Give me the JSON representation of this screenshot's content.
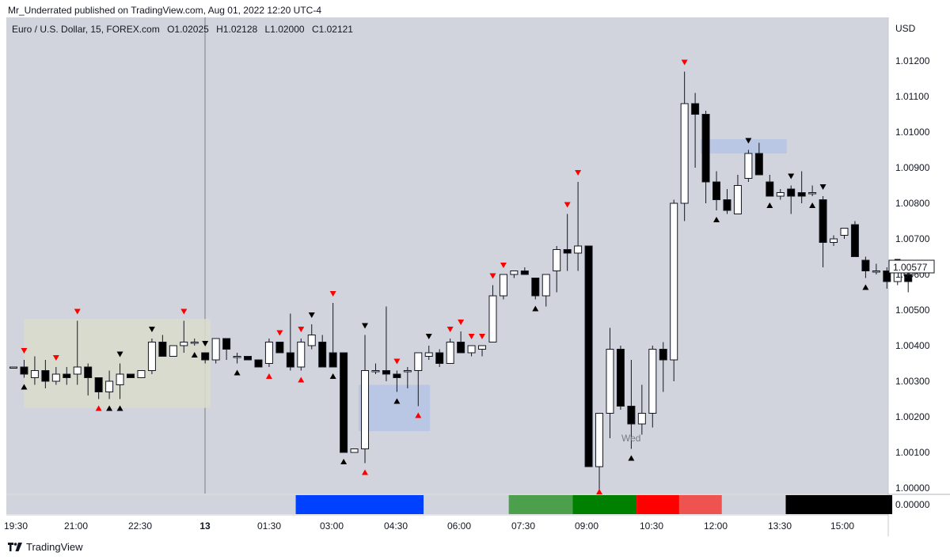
{
  "header": {
    "published": "Mr_Underrated published on TradingView.com, Aug 01, 2022 12:20 UTC-4"
  },
  "legend": {
    "symbol": "Euro / U.S. Dollar, 15, FOREX.com",
    "open": "O1.02025",
    "high": "H1.02128",
    "low": "L1.02000",
    "close": "C1.02121"
  },
  "footer": {
    "brand": "TradingView"
  },
  "colors": {
    "background": "#d1d4dc",
    "bull_body": "#ffffff",
    "bear_body": "#000000",
    "wick": "#131722",
    "signal_red": "#ff0000",
    "signal_black": "#000000",
    "zone_olive": "#dcdccc",
    "zone_blue": "#b4c3e6"
  },
  "chart_data": {
    "type": "candlestick",
    "currency": "USD",
    "ylim": [
      0.9996,
      1.0126
    ],
    "y_ticks": [
      "1.01200",
      "1.01100",
      "1.01000",
      "1.00900",
      "1.00800",
      "1.00700",
      "1.00600",
      "1.00500",
      "1.00400",
      "1.00300",
      "1.00200",
      "1.00100",
      "1.00000"
    ],
    "x_ticks": [
      "19:30",
      "21:00",
      "22:30",
      "13",
      "01:30",
      "03:00",
      "04:30",
      "06:00",
      "07:30",
      "09:00",
      "10:30",
      "12:00",
      "13:30",
      "15:00"
    ],
    "session_label": "Wed",
    "last_price": "1.00577",
    "indicator_label": "0.00000",
    "candles": [
      {
        "o": 1.0034,
        "h": 1.0034,
        "l": 1.0034,
        "c": 1.0034
      },
      {
        "o": 1.0034,
        "h": 1.0036,
        "l": 1.0031,
        "c": 1.0032
      },
      {
        "o": 1.0031,
        "h": 1.0037,
        "l": 1.0029,
        "c": 1.0033
      },
      {
        "o": 1.0033,
        "h": 1.0036,
        "l": 1.0028,
        "c": 1.003
      },
      {
        "o": 1.003,
        "h": 1.0034,
        "l": 1.0029,
        "c": 1.0032
      },
      {
        "o": 1.0032,
        "h": 1.0034,
        "l": 1.0029,
        "c": 1.0031
      },
      {
        "o": 1.0032,
        "h": 1.0047,
        "l": 1.0029,
        "c": 1.0034
      },
      {
        "o": 1.0034,
        "h": 1.0035,
        "l": 1.0026,
        "c": 1.0031
      },
      {
        "o": 1.0031,
        "h": 1.0031,
        "l": 1.0025,
        "c": 1.0027
      },
      {
        "o": 1.0027,
        "h": 1.0033,
        "l": 1.0025,
        "c": 1.003
      },
      {
        "o": 1.0029,
        "h": 1.0035,
        "l": 1.0025,
        "c": 1.0032
      },
      {
        "o": 1.0032,
        "h": 1.0032,
        "l": 1.0031,
        "c": 1.0031
      },
      {
        "o": 1.0031,
        "h": 1.0033,
        "l": 1.0031,
        "c": 1.0033
      },
      {
        "o": 1.0033,
        "h": 1.0042,
        "l": 1.0032,
        "c": 1.0041
      },
      {
        "o": 1.0041,
        "h": 1.0043,
        "l": 1.0037,
        "c": 1.0037
      },
      {
        "o": 1.0037,
        "h": 1.004,
        "l": 1.0037,
        "c": 1.004
      },
      {
        "o": 1.004,
        "h": 1.0047,
        "l": 1.0038,
        "c": 1.0041
      },
      {
        "o": 1.0041,
        "h": 1.0042,
        "l": 1.004,
        "c": 1.0041
      },
      {
        "o": 1.0038,
        "h": 1.0038,
        "l": 1.0035,
        "c": 1.0036
      },
      {
        "o": 1.0036,
        "h": 1.0042,
        "l": 1.0035,
        "c": 1.0042
      },
      {
        "o": 1.0042,
        "h": 1.0042,
        "l": 1.0036,
        "c": 1.0039
      },
      {
        "o": 1.0037,
        "h": 1.0038,
        "l": 1.0035,
        "c": 1.0037
      },
      {
        "o": 1.0037,
        "h": 1.0037,
        "l": 1.0036,
        "c": 1.0036
      },
      {
        "o": 1.0036,
        "h": 1.0036,
        "l": 1.0034,
        "c": 1.0034
      },
      {
        "o": 1.0035,
        "h": 1.0042,
        "l": 1.0034,
        "c": 1.0041
      },
      {
        "o": 1.0041,
        "h": 1.0041,
        "l": 1.0038,
        "c": 1.0038
      },
      {
        "o": 1.0038,
        "h": 1.0049,
        "l": 1.0033,
        "c": 1.0034
      },
      {
        "o": 1.0034,
        "h": 1.0042,
        "l": 1.0033,
        "c": 1.0041
      },
      {
        "o": 1.004,
        "h": 1.0046,
        "l": 1.0039,
        "c": 1.0043
      },
      {
        "o": 1.0041,
        "h": 1.0043,
        "l": 1.0034,
        "c": 1.0034
      },
      {
        "o": 1.0038,
        "h": 1.0052,
        "l": 1.0034,
        "c": 1.0034
      },
      {
        "o": 1.0038,
        "h": 1.0038,
        "l": 1.001,
        "c": 1.001
      },
      {
        "o": 1.001,
        "h": 1.0011,
        "l": 1.001,
        "c": 1.0011
      },
      {
        "o": 1.0011,
        "h": 1.0043,
        "l": 1.0007,
        "c": 1.0033
      },
      {
        "o": 1.0033,
        "h": 1.0035,
        "l": 1.0032,
        "c": 1.0033
      },
      {
        "o": 1.0033,
        "h": 1.0051,
        "l": 1.003,
        "c": 1.0032
      },
      {
        "o": 1.0032,
        "h": 1.0033,
        "l": 1.0027,
        "c": 1.0031
      },
      {
        "o": 1.0033,
        "h": 1.0034,
        "l": 1.0028,
        "c": 1.0033
      },
      {
        "o": 1.0033,
        "h": 1.0038,
        "l": 1.0023,
        "c": 1.0038
      },
      {
        "o": 1.0037,
        "h": 1.004,
        "l": 1.0036,
        "c": 1.0038
      },
      {
        "o": 1.0038,
        "h": 1.0039,
        "l": 1.0034,
        "c": 1.0035
      },
      {
        "o": 1.0035,
        "h": 1.0042,
        "l": 1.0035,
        "c": 1.0041
      },
      {
        "o": 1.0041,
        "h": 1.0044,
        "l": 1.0038,
        "c": 1.0038
      },
      {
        "o": 1.0038,
        "h": 1.004,
        "l": 1.0037,
        "c": 1.004
      },
      {
        "o": 1.0039,
        "h": 1.004,
        "l": 1.0037,
        "c": 1.004
      },
      {
        "o": 1.0041,
        "h": 1.0057,
        "l": 1.0041,
        "c": 1.0054
      },
      {
        "o": 1.0054,
        "h": 1.006,
        "l": 1.0053,
        "c": 1.006
      },
      {
        "o": 1.006,
        "h": 1.0061,
        "l": 1.0059,
        "c": 1.0061
      },
      {
        "o": 1.0061,
        "h": 1.0062,
        "l": 1.006,
        "c": 1.006
      },
      {
        "o": 1.0059,
        "h": 1.0059,
        "l": 1.0053,
        "c": 1.0054
      },
      {
        "o": 1.0054,
        "h": 1.006,
        "l": 1.0051,
        "c": 1.006
      },
      {
        "o": 1.0061,
        "h": 1.0068,
        "l": 1.0055,
        "c": 1.0067
      },
      {
        "o": 1.0067,
        "h": 1.0077,
        "l": 1.0061,
        "c": 1.0066
      },
      {
        "o": 1.0066,
        "h": 1.0086,
        "l": 1.0061,
        "c": 1.0068
      },
      {
        "o": 1.0068,
        "h": 1.0068,
        "l": 1.0006,
        "c": 1.0006
      },
      {
        "o": 1.0006,
        "h": 1.0021,
        "l": 0.9999,
        "c": 1.0021
      },
      {
        "o": 1.0021,
        "h": 1.0045,
        "l": 1.0014,
        "c": 1.0039
      },
      {
        "o": 1.0039,
        "h": 1.004,
        "l": 1.0022,
        "c": 1.0023
      },
      {
        "o": 1.0023,
        "h": 1.0036,
        "l": 1.0011,
        "c": 1.0018
      },
      {
        "o": 1.0018,
        "h": 1.0029,
        "l": 1.0015,
        "c": 1.0021
      },
      {
        "o": 1.0021,
        "h": 1.004,
        "l": 1.0017,
        "c": 1.0039
      },
      {
        "o": 1.0039,
        "h": 1.0041,
        "l": 1.0027,
        "c": 1.0036
      },
      {
        "o": 1.0036,
        "h": 1.0081,
        "l": 1.003,
        "c": 1.008
      },
      {
        "o": 1.008,
        "h": 1.0117,
        "l": 1.0075,
        "c": 1.0108
      },
      {
        "o": 1.0108,
        "h": 1.0111,
        "l": 1.009,
        "c": 1.0105
      },
      {
        "o": 1.0105,
        "h": 1.0106,
        "l": 1.008,
        "c": 1.0086
      },
      {
        "o": 1.0086,
        "h": 1.0089,
        "l": 1.0078,
        "c": 1.0081
      },
      {
        "o": 1.0081,
        "h": 1.0084,
        "l": 1.0077,
        "c": 1.0078
      },
      {
        "o": 1.0077,
        "h": 1.0088,
        "l": 1.0077,
        "c": 1.0085
      },
      {
        "o": 1.0087,
        "h": 1.0095,
        "l": 1.0086,
        "c": 1.0094
      },
      {
        "o": 1.0094,
        "h": 1.0097,
        "l": 1.0088,
        "c": 1.0088
      },
      {
        "o": 1.0086,
        "h": 1.0088,
        "l": 1.0082,
        "c": 1.0082
      },
      {
        "o": 1.0082,
        "h": 1.0084,
        "l": 1.0081,
        "c": 1.0083
      },
      {
        "o": 1.0084,
        "h": 1.0085,
        "l": 1.0077,
        "c": 1.0082
      },
      {
        "o": 1.0083,
        "h": 1.0089,
        "l": 1.008,
        "c": 1.0082
      },
      {
        "o": 1.0083,
        "h": 1.0085,
        "l": 1.0082,
        "c": 1.0083
      },
      {
        "o": 1.0081,
        "h": 1.0082,
        "l": 1.0062,
        "c": 1.0069
      },
      {
        "o": 1.0069,
        "h": 1.0071,
        "l": 1.0068,
        "c": 1.007
      },
      {
        "o": 1.0071,
        "h": 1.0073,
        "l": 1.007,
        "c": 1.0073
      },
      {
        "o": 1.0074,
        "h": 1.0075,
        "l": 1.0065,
        "c": 1.0065
      },
      {
        "o": 1.0064,
        "h": 1.0065,
        "l": 1.0059,
        "c": 1.0061
      },
      {
        "o": 1.0061,
        "h": 1.0063,
        "l": 1.006,
        "c": 1.0061
      },
      {
        "o": 1.0061,
        "h": 1.0062,
        "l": 1.0056,
        "c": 1.0058
      },
      {
        "o": 1.0058,
        "h": 1.0061,
        "l": 1.0057,
        "c": 1.0061
      },
      {
        "o": 1.006,
        "h": 1.0061,
        "l": 1.0055,
        "c": 1.0058
      }
    ],
    "signals": [
      {
        "i": 1,
        "type": "high",
        "color": "red"
      },
      {
        "i": 1,
        "type": "low",
        "color": "black"
      },
      {
        "i": 4,
        "type": "high",
        "color": "red"
      },
      {
        "i": 6,
        "type": "high",
        "color": "red"
      },
      {
        "i": 8,
        "type": "low",
        "color": "red"
      },
      {
        "i": 9,
        "type": "low",
        "color": "black"
      },
      {
        "i": 10,
        "type": "high",
        "color": "black"
      },
      {
        "i": 10,
        "type": "low",
        "color": "black"
      },
      {
        "i": 13,
        "type": "high",
        "color": "black"
      },
      {
        "i": 16,
        "type": "high",
        "color": "red"
      },
      {
        "i": 17,
        "type": "low",
        "color": "black"
      },
      {
        "i": 18,
        "type": "high",
        "color": "black"
      },
      {
        "i": 21,
        "type": "low",
        "color": "black"
      },
      {
        "i": 24,
        "type": "low",
        "color": "red"
      },
      {
        "i": 25,
        "type": "high",
        "color": "red"
      },
      {
        "i": 27,
        "type": "high",
        "color": "red"
      },
      {
        "i": 27,
        "type": "low",
        "color": "red"
      },
      {
        "i": 28,
        "type": "high",
        "color": "black"
      },
      {
        "i": 30,
        "type": "high",
        "color": "red"
      },
      {
        "i": 30,
        "type": "low",
        "color": "black"
      },
      {
        "i": 31,
        "type": "low",
        "color": "black"
      },
      {
        "i": 33,
        "type": "high",
        "color": "black"
      },
      {
        "i": 33,
        "type": "low",
        "color": "red"
      },
      {
        "i": 36,
        "type": "high",
        "color": "red"
      },
      {
        "i": 36,
        "type": "low",
        "color": "black"
      },
      {
        "i": 38,
        "type": "low",
        "color": "red"
      },
      {
        "i": 39,
        "type": "high",
        "color": "black"
      },
      {
        "i": 41,
        "type": "high",
        "color": "red"
      },
      {
        "i": 42,
        "type": "high",
        "color": "red"
      },
      {
        "i": 43,
        "type": "high",
        "color": "red"
      },
      {
        "i": 44,
        "type": "high",
        "color": "red"
      },
      {
        "i": 45,
        "type": "high",
        "color": "red"
      },
      {
        "i": 46,
        "type": "high",
        "color": "red"
      },
      {
        "i": 49,
        "type": "low",
        "color": "black"
      },
      {
        "i": 52,
        "type": "high",
        "color": "red"
      },
      {
        "i": 53,
        "type": "high",
        "color": "red"
      },
      {
        "i": 55,
        "type": "low",
        "color": "red"
      },
      {
        "i": 58,
        "type": "low",
        "color": "black"
      },
      {
        "i": 63,
        "type": "high",
        "color": "red"
      },
      {
        "i": 66,
        "type": "low",
        "color": "black"
      },
      {
        "i": 69,
        "type": "high",
        "color": "black"
      },
      {
        "i": 71,
        "type": "low",
        "color": "black"
      },
      {
        "i": 73,
        "type": "high",
        "color": "black"
      },
      {
        "i": 75,
        "type": "low",
        "color": "black"
      },
      {
        "i": 76,
        "type": "high",
        "color": "black"
      },
      {
        "i": 80,
        "type": "low",
        "color": "black"
      },
      {
        "i": 83,
        "type": "high",
        "color": "black"
      }
    ],
    "zones": [
      {
        "from": 1,
        "to": 18.5,
        "top": 1.00475,
        "bottom": 1.00225,
        "color": "olive"
      },
      {
        "from": 32.4,
        "to": 39.1,
        "top": 1.0029,
        "bottom": 1.0016,
        "color": "blue"
      },
      {
        "from": 64.5,
        "to": 72.6,
        "top": 1.0098,
        "bottom": 1.0094,
        "color": "blue"
      }
    ],
    "indicator_segments": [
      {
        "from": 26.5,
        "to": 38.5,
        "color": "#0040ff"
      },
      {
        "from": 46.5,
        "to": 52.5,
        "color": "#4ca04c"
      },
      {
        "from": 52.5,
        "to": 58.5,
        "color": "#008000"
      },
      {
        "from": 58.5,
        "to": 62.5,
        "color": "#ff0000"
      },
      {
        "from": 62.5,
        "to": 66.5,
        "color": "#ef5350"
      },
      {
        "from": 72.5,
        "to": 82.5,
        "color": "#000000"
      }
    ]
  }
}
